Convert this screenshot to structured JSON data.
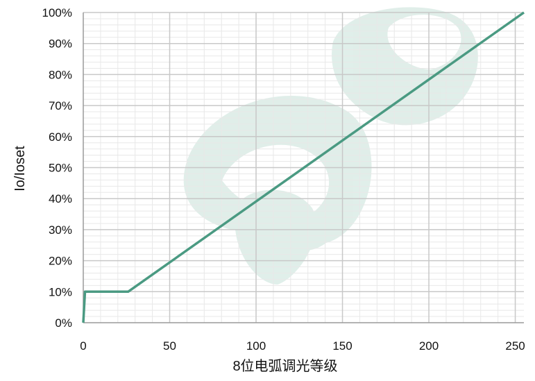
{
  "chart_data": {
    "type": "line",
    "xlabel": "8位电弧调光等级",
    "ylabel": "Io/Ioset",
    "xlim": [
      0,
      255
    ],
    "ylim": [
      0,
      100
    ],
    "x_ticks": [
      "0",
      "50",
      "100",
      "150",
      "200",
      "250"
    ],
    "y_ticks": [
      "0%",
      "10%",
      "20%",
      "30%",
      "40%",
      "50%",
      "60%",
      "70%",
      "80%",
      "90%",
      "100%"
    ],
    "grid": true,
    "series": [
      {
        "color": "#4a9a82",
        "x": [
          0,
          1,
          26,
          255
        ],
        "y": [
          0,
          10,
          10,
          100
        ]
      }
    ],
    "colors": {
      "line": "#4a9a82",
      "major_grid": "#c8c8c8",
      "minor_grid": "#e8e8e8",
      "watermark": "#dbece6"
    }
  }
}
